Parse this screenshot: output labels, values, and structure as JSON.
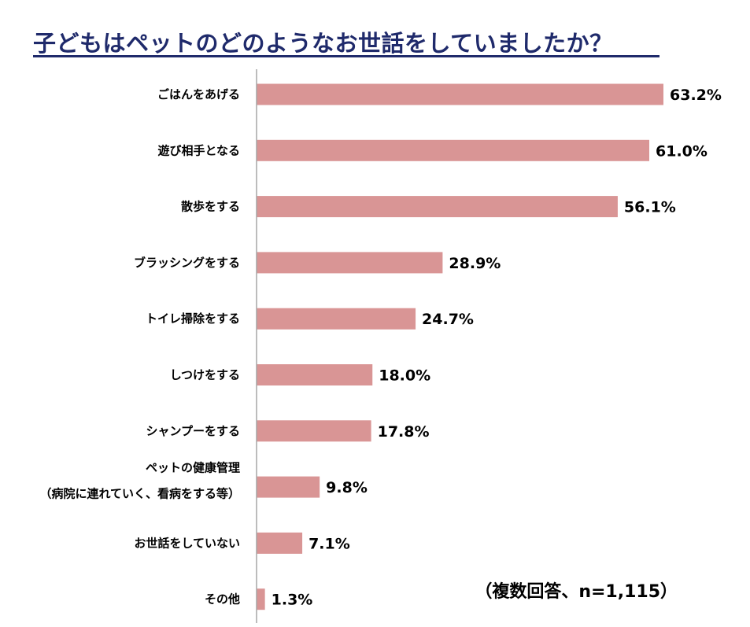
{
  "title": "子どもはペットのどのようなお世話をしていましたか？",
  "note": "（複数回答、n=1,115）",
  "colors": {
    "bar": "#d99595",
    "axis": "#a6a6a6",
    "title": "#1f2a6b"
  },
  "chart_data": {
    "type": "bar",
    "orientation": "horizontal",
    "categories": [
      [
        "ごはんをあげる"
      ],
      [
        "遊び相手となる"
      ],
      [
        "散歩をする"
      ],
      [
        "ブラッシングをする"
      ],
      [
        "トイレ掃除をする"
      ],
      [
        "しつけをする"
      ],
      [
        "シャンプーをする"
      ],
      [
        "ペットの健康管理",
        "（病院に連れていく、看病をする等）"
      ],
      [
        "お世話をしていない"
      ],
      [
        "その他"
      ]
    ],
    "values": [
      63.2,
      61.0,
      56.1,
      28.9,
      24.7,
      18.0,
      17.8,
      9.8,
      7.1,
      1.3
    ],
    "value_labels": [
      "63.2%",
      "61.0%",
      "56.1%",
      "28.9%",
      "24.7%",
      "18.0%",
      "17.8%",
      "9.8%",
      "7.1%",
      "1.3%"
    ],
    "grid": false,
    "legend": "none"
  }
}
